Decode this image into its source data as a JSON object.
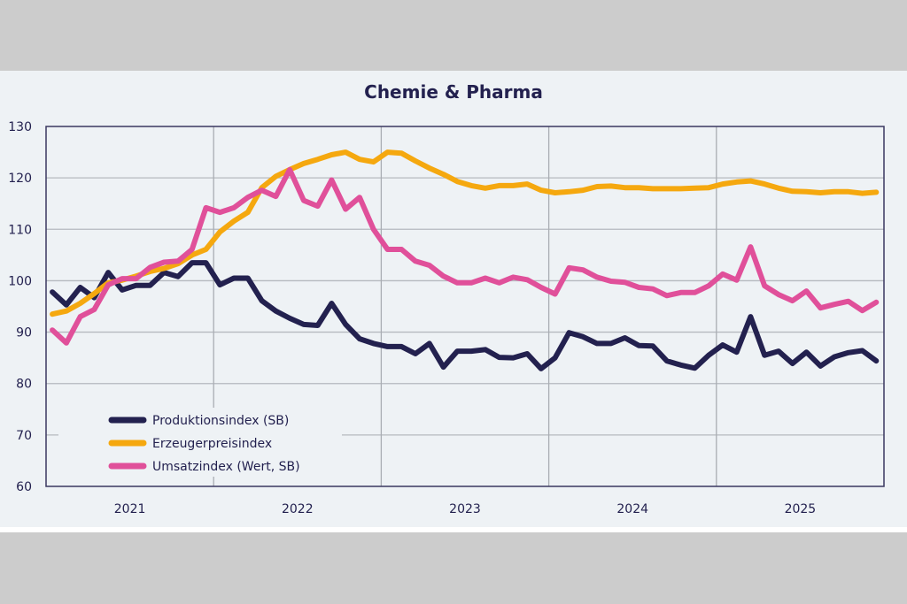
{
  "chart_data": {
    "type": "line",
    "title": "Chemie & Pharma",
    "xlabel": "",
    "ylabel": "",
    "ylim": [
      60,
      130
    ],
    "yticks": [
      60,
      70,
      80,
      90,
      100,
      110,
      120,
      130
    ],
    "x_tick_labels": [
      "2021",
      "2022",
      "2023",
      "2024",
      "2025"
    ],
    "x_frequency": "monthly, Jan 2021 – Dec 2025",
    "grid": true,
    "legend_position": "bottom-left",
    "series": [
      {
        "name": "Produktionsindex (SB)",
        "color": "#23214f",
        "values": [
          97.8,
          95.3,
          98.7,
          96.7,
          101.6,
          98.2,
          99.1,
          99.1,
          101.6,
          100.8,
          103.5,
          103.5,
          99.2,
          100.5,
          100.5,
          96.1,
          94.1,
          92.7,
          91.5,
          91.3,
          95.6,
          91.5,
          88.7,
          87.8,
          87.2,
          87.2,
          85.8,
          87.8,
          83.2,
          86.3,
          86.3,
          86.6,
          85.1,
          85.0,
          85.8,
          82.9,
          85.0,
          89.9,
          89.1,
          87.8,
          87.8,
          88.9,
          87.4,
          87.3,
          84.4,
          83.6,
          83.0,
          85.5,
          87.5,
          86.1,
          93.0,
          85.5,
          86.3,
          83.9,
          86.1,
          83.4,
          85.2,
          86.0,
          86.4,
          84.4
        ]
      },
      {
        "name": "Erzeugerpreisindex",
        "color": "#f5a80f",
        "values": [
          93.5,
          94.1,
          95.6,
          97.5,
          99.6,
          100.1,
          100.9,
          101.8,
          102.4,
          103.3,
          105.0,
          106.1,
          109.5,
          111.6,
          113.3,
          118.1,
          120.3,
          121.6,
          122.8,
          123.6,
          124.5,
          125.0,
          123.6,
          123.1,
          125.0,
          124.8,
          123.3,
          121.9,
          120.7,
          119.3,
          118.5,
          118.0,
          118.5,
          118.5,
          118.8,
          117.6,
          117.1,
          117.3,
          117.6,
          118.3,
          118.4,
          118.1,
          118.1,
          117.9,
          117.9,
          117.9,
          118.0,
          118.1,
          118.8,
          119.2,
          119.4,
          118.8,
          118.0,
          117.4,
          117.3,
          117.1,
          117.3,
          117.3,
          117.0,
          117.2
        ]
      },
      {
        "name": "Umsatzindex (Wert, SB)",
        "color": "#e0509a",
        "values": [
          90.4,
          87.9,
          93.0,
          94.4,
          99.2,
          100.4,
          100.4,
          102.6,
          103.6,
          103.8,
          106.1,
          114.2,
          113.3,
          114.2,
          116.2,
          117.6,
          116.4,
          121.6,
          115.6,
          114.5,
          119.6,
          113.9,
          116.2,
          110.0,
          106.1,
          106.1,
          103.8,
          103.0,
          100.9,
          99.6,
          99.6,
          100.5,
          99.6,
          100.7,
          100.2,
          98.7,
          97.4,
          102.5,
          102.1,
          100.7,
          99.9,
          99.7,
          98.7,
          98.4,
          97.1,
          97.7,
          97.7,
          99.0,
          101.3,
          100.1,
          106.6,
          99.0,
          97.3,
          96.1,
          98.0,
          94.7,
          95.4,
          96.0,
          94.2,
          95.8
        ]
      }
    ]
  }
}
